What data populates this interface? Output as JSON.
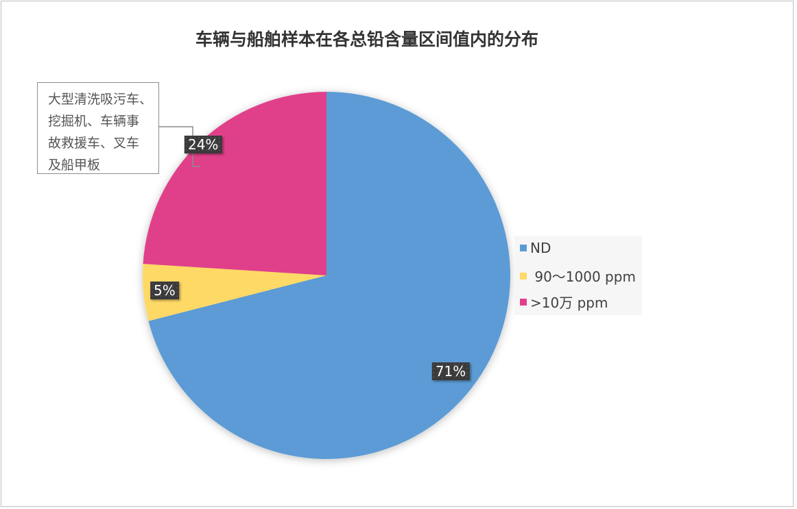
{
  "chart_data": {
    "type": "pie",
    "title": "车辆与船舶样本在各总铅含量区间值内的分布",
    "start_angle": "12 o'clock",
    "direction": "clockwise",
    "series": [
      {
        "name": "ND",
        "value": 71,
        "label": "71%",
        "color": "#5B9BD5"
      },
      {
        "name": " 90～1000 ppm",
        "value": 5,
        "label": "5%",
        "color": "#FFD966"
      },
      {
        "name": ">10万 ppm",
        "value": 24,
        "label": "24%",
        "color": "#E0408A"
      }
    ],
    "legend_position": "right",
    "annotation": {
      "target": ">10万 ppm",
      "lines": [
        "大型清洗吸污车、",
        "挖掘机、车辆事",
        "故救援车、叉车",
        "及船甲板"
      ]
    }
  }
}
